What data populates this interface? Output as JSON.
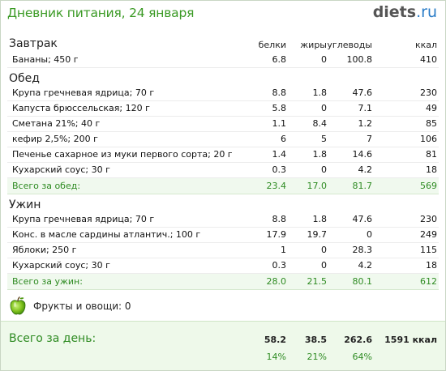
{
  "header": {
    "title": "Дневник питания, 24 января",
    "logo_main": "diets",
    "logo_tld": ".ru"
  },
  "columns": {
    "protein": "белки",
    "fat": "жиры",
    "carbs": "углеводы",
    "kcal": "ккал"
  },
  "breakfast": {
    "title": "Завтрак",
    "items": [
      {
        "name": "Бананы; 450 г",
        "protein": "6.8",
        "fat": "0",
        "carbs": "100.8",
        "kcal": "410"
      }
    ]
  },
  "lunch": {
    "title": "Обед",
    "items": [
      {
        "name": "Крупа гречневая ядрица; 70 г",
        "protein": "8.8",
        "fat": "1.8",
        "carbs": "47.6",
        "kcal": "230"
      },
      {
        "name": "Капуста брюссельская; 120 г",
        "protein": "5.8",
        "fat": "0",
        "carbs": "7.1",
        "kcal": "49"
      },
      {
        "name": "Сметана 21%; 40 г",
        "protein": "1.1",
        "fat": "8.4",
        "carbs": "1.2",
        "kcal": "85"
      },
      {
        "name": "кефир 2,5%; 200 г",
        "protein": "6",
        "fat": "5",
        "carbs": "7",
        "kcal": "106"
      },
      {
        "name": "Печенье сахарное из муки первого сорта; 20 г",
        "protein": "1.4",
        "fat": "1.8",
        "carbs": "14.6",
        "kcal": "81"
      },
      {
        "name": "Кухарский соус; 30 г",
        "protein": "0.3",
        "fat": "0",
        "carbs": "4.2",
        "kcal": "18"
      }
    ],
    "total": {
      "label": "Всего за обед:",
      "protein": "23.4",
      "fat": "17.0",
      "carbs": "81.7",
      "kcal": "569"
    }
  },
  "dinner": {
    "title": "Ужин",
    "items": [
      {
        "name": "Крупа гречневая ядрица; 70 г",
        "protein": "8.8",
        "fat": "1.8",
        "carbs": "47.6",
        "kcal": "230"
      },
      {
        "name": "Конс. в масле сардины атлантич.; 100 г",
        "protein": "17.9",
        "fat": "19.7",
        "carbs": "0",
        "kcal": "249"
      },
      {
        "name": "Яблоки; 250 г",
        "protein": "1",
        "fat": "0",
        "carbs": "28.3",
        "kcal": "115"
      },
      {
        "name": "Кухарский соус; 30 г",
        "protein": "0.3",
        "fat": "0",
        "carbs": "4.2",
        "kcal": "18"
      }
    ],
    "total": {
      "label": "Всего за ужин:",
      "protein": "28.0",
      "fat": "21.5",
      "carbs": "80.1",
      "kcal": "612"
    }
  },
  "fruits": {
    "label": "Фрукты и овощи: 0",
    "icon": "apple-icon"
  },
  "day": {
    "label": "Всего за день:",
    "protein": "58.2",
    "fat": "38.5",
    "carbs": "262.6",
    "kcal": "1591 ккал",
    "protein_pct": "14%",
    "fat_pct": "21%",
    "carbs_pct": "64%"
  },
  "colors": {
    "accent": "#3a9a24",
    "total_bg": "#f0f9ee",
    "logo_tld": "#2a7cc7"
  }
}
